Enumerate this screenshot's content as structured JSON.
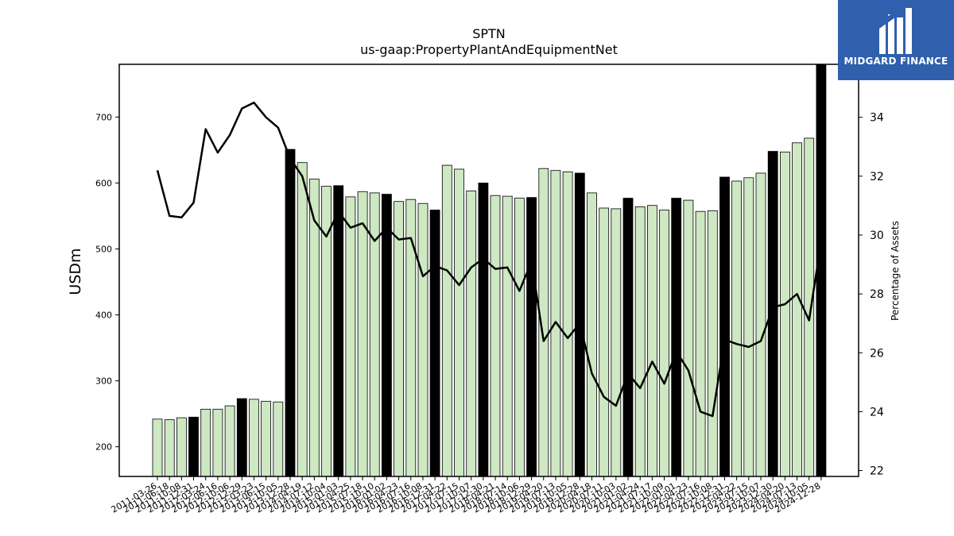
{
  "brand": {
    "name": "MIDGARD FINANCE",
    "color": "#2f5fad"
  },
  "colors": {
    "bar_light": "#cde8c2",
    "bar_dark": "#000000",
    "line": "#000000"
  },
  "chart_data": {
    "type": "bar",
    "title": "SPTN",
    "subtitle": "us-gaap:PropertyPlantAndEquipmentNet",
    "ylabel": "USDm",
    "y2label": "Percentage of Assets",
    "ylim": [
      155,
      780
    ],
    "y2lim": [
      21.8,
      35.8
    ],
    "yticks": [
      200,
      300,
      400,
      500,
      600,
      700
    ],
    "y2ticks": [
      22,
      24,
      26,
      28,
      30,
      32,
      34
    ],
    "grid": false,
    "categories": [
      "2011-03-26",
      "2011-06-18",
      "2011-10-08",
      "2011-12-31",
      "2012-03-24",
      "2012-06-16",
      "2012-10-06",
      "2012-12-29",
      "2013-03-23",
      "2013-06-15",
      "2013-10-05",
      "2013-12-28",
      "2014-04-19",
      "2014-07-12",
      "2014-10-04",
      "2015-01-03",
      "2015-04-25",
      "2015-07-18",
      "2015-10-10",
      "2016-01-02",
      "2016-04-23",
      "2016-07-16",
      "2016-10-08",
      "2016-12-31",
      "2017-04-22",
      "2017-07-15",
      "2017-10-07",
      "2017-12-30",
      "2018-04-21",
      "2018-07-14",
      "2018-10-06",
      "2018-12-29",
      "2019-04-20",
      "2019-07-13",
      "2019-10-05",
      "2019-12-28",
      "2020-04-18",
      "2020-07-11",
      "2020-10-03",
      "2021-01-02",
      "2021-04-24",
      "2021-07-17",
      "2021-10-09",
      "2022-01-01",
      "2022-04-23",
      "2022-07-16",
      "2022-10-08",
      "2022-12-31",
      "2023-04-22",
      "2023-07-15",
      "2023-10-07",
      "2023-12-30",
      "2024-04-20",
      "2024-07-13",
      "2024-10-05",
      "2024-12-28"
    ],
    "series": [
      {
        "type": "bar",
        "axis": "left",
        "values": [
          242,
          241,
          244,
          245,
          257,
          257,
          262,
          273,
          272,
          269,
          268,
          651,
          631,
          606,
          595,
          596,
          579,
          587,
          585,
          583,
          572,
          575,
          569,
          559,
          627,
          621,
          588,
          600,
          581,
          580,
          577,
          578,
          622,
          619,
          617,
          615,
          585,
          562,
          561,
          577,
          564,
          566,
          559,
          577,
          574,
          557,
          558,
          609,
          603,
          608,
          615,
          648,
          647,
          661,
          668,
          780
        ],
        "dark": [
          false,
          false,
          false,
          true,
          false,
          false,
          false,
          true,
          false,
          false,
          false,
          true,
          false,
          false,
          false,
          true,
          false,
          false,
          false,
          true,
          false,
          false,
          false,
          true,
          false,
          false,
          false,
          true,
          false,
          false,
          false,
          true,
          false,
          false,
          false,
          true,
          false,
          false,
          false,
          true,
          false,
          false,
          false,
          true,
          false,
          false,
          false,
          true,
          false,
          false,
          false,
          true,
          false,
          false,
          false,
          true
        ]
      },
      {
        "type": "line",
        "axis": "right",
        "values": [
          32.2,
          30.65,
          30.6,
          31.1,
          33.6,
          32.8,
          33.4,
          34.3,
          34.5,
          34.0,
          33.65,
          32.6,
          32.0,
          30.5,
          29.95,
          30.8,
          30.25,
          30.4,
          29.8,
          30.25,
          29.85,
          29.9,
          28.6,
          28.95,
          28.8,
          28.3,
          28.9,
          29.2,
          28.85,
          28.9,
          28.1,
          29.1,
          26.4,
          27.05,
          26.5,
          27.0,
          25.3,
          24.5,
          24.2,
          25.3,
          24.8,
          25.7,
          24.95,
          26.05,
          25.4,
          24.0,
          23.85,
          26.45,
          26.3,
          26.2,
          26.4,
          27.55,
          27.65,
          28.0,
          27.1,
          29.8
        ]
      }
    ]
  }
}
